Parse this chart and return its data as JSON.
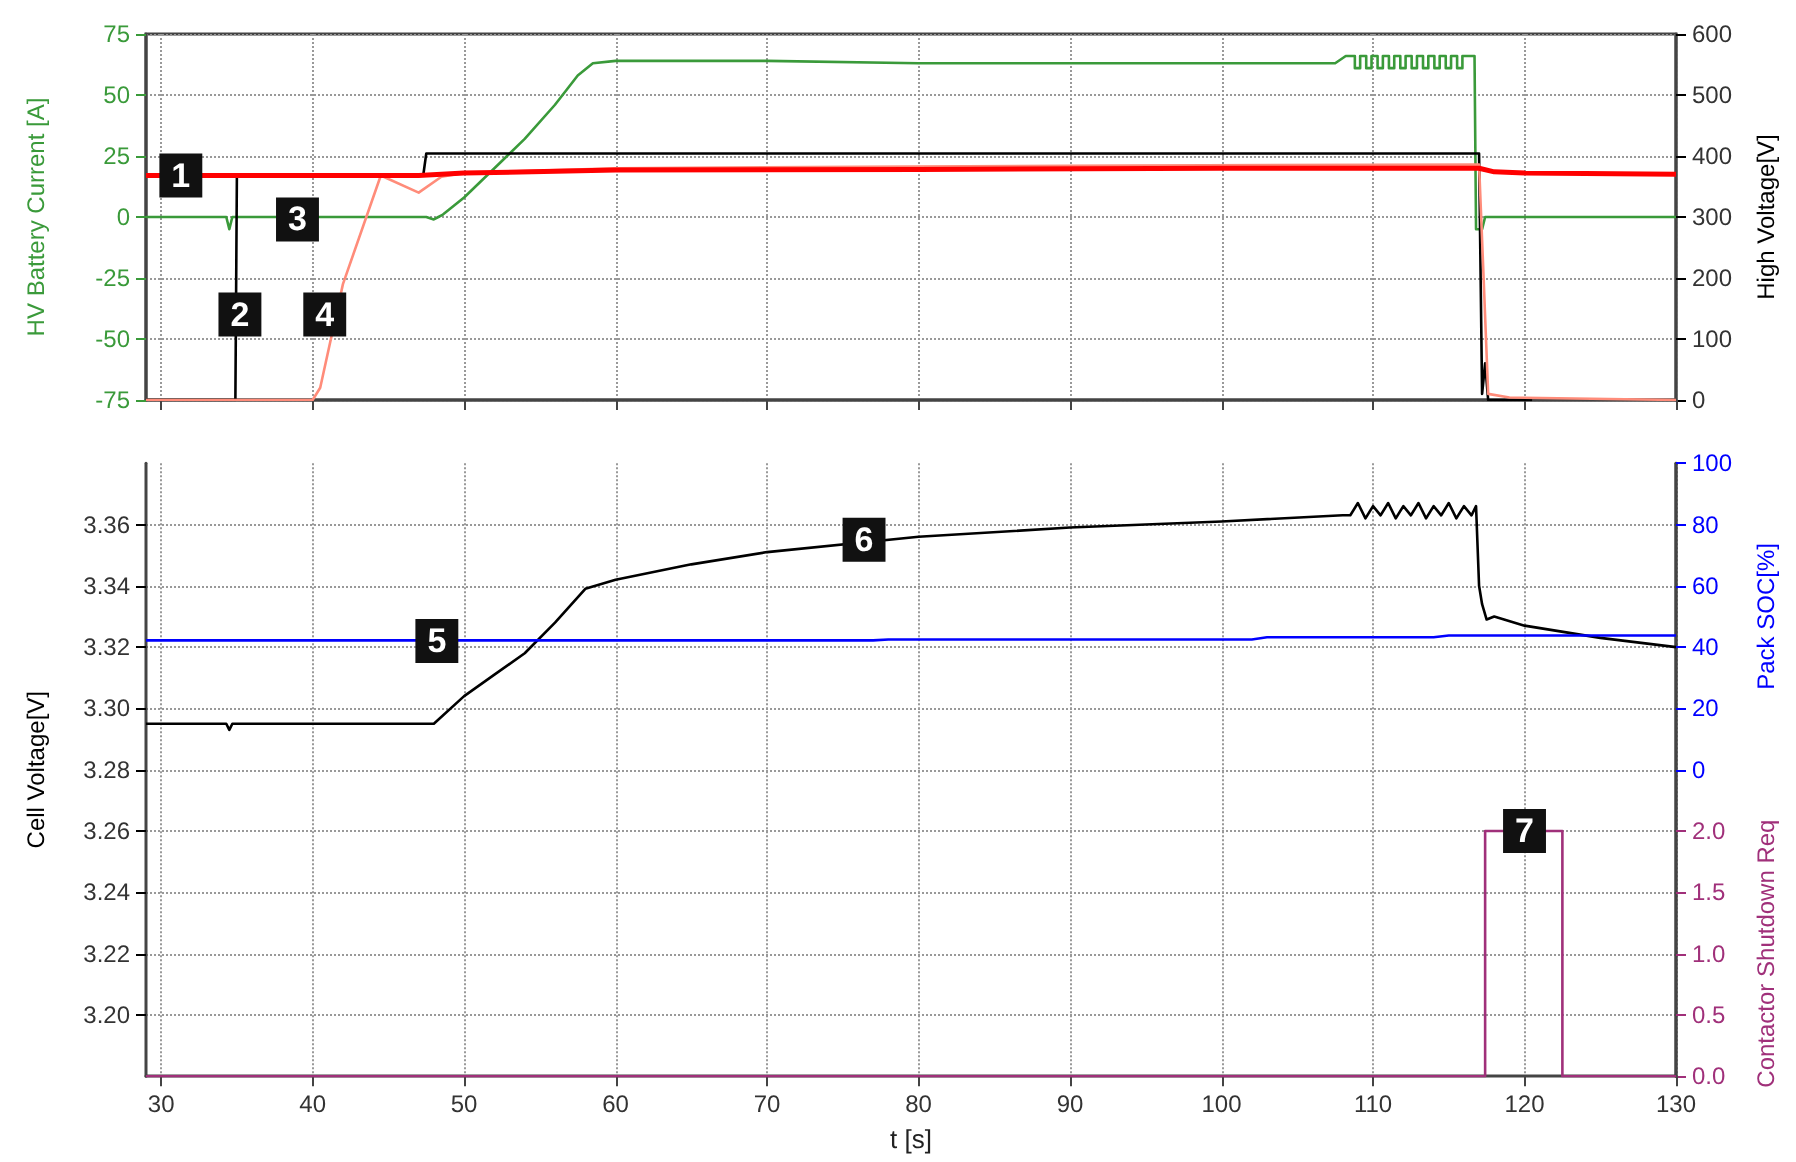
{
  "chart_data": [
    {
      "type": "line",
      "ylabel": "HV Battery Current [A]",
      "y2label": "High Voltage[V]",
      "xlim": [
        29,
        130
      ],
      "xticks": [
        30,
        40,
        50,
        60,
        70,
        80,
        90,
        100,
        110,
        120,
        130
      ],
      "ylim": [
        -75,
        75
      ],
      "yticks": [
        -75,
        -50,
        -25,
        0,
        25,
        50,
        75
      ],
      "y2lim": [
        0,
        600
      ],
      "y2ticks": [
        0,
        100,
        200,
        300,
        400,
        500,
        600
      ],
      "tick_labels": "y",
      "grid": true,
      "marker": "none",
      "line_style": "solid",
      "series": [
        {
          "color": "#3a9a3a",
          "x": [
            29,
            34.3,
            34.5,
            34.7,
            47.5,
            48,
            48.3,
            48.6,
            50,
            52,
            54,
            56,
            57.5,
            58.5,
            60,
            70,
            80,
            90,
            100,
            107.5,
            108.2,
            108.8,
            108.8,
            109.15,
            109.15,
            109.55,
            109.55,
            109.9,
            109.9,
            110.3,
            110.3,
            110.65,
            110.65,
            111.05,
            111.05,
            111.4,
            111.4,
            111.8,
            111.8,
            112.15,
            112.15,
            112.55,
            112.55,
            112.9,
            112.9,
            113.3,
            113.3,
            113.65,
            113.65,
            114.05,
            114.05,
            114.4,
            114.4,
            114.8,
            114.8,
            115.15,
            115.15,
            115.55,
            115.55,
            115.9,
            115.9,
            116.7,
            116.8,
            117.2,
            117.4,
            130
          ],
          "values": [
            0,
            0,
            -5,
            0,
            0,
            -1,
            0,
            1,
            8,
            20,
            32,
            46,
            58,
            63,
            64,
            64,
            63,
            63,
            63,
            63,
            66,
            66,
            61,
            61,
            66,
            66,
            61,
            61,
            66,
            66,
            61,
            61,
            66,
            66,
            61,
            61,
            66,
            66,
            61,
            61,
            66,
            66,
            61,
            61,
            66,
            66,
            61,
            61,
            66,
            66,
            61,
            61,
            66,
            66,
            61,
            61,
            66,
            66,
            61,
            61,
            66,
            66,
            -5,
            -5,
            0,
            0
          ]
        },
        {
          "color": "#000000",
          "axis": "y2",
          "x": [
            29,
            34.9,
            35,
            47.3,
            47.5,
            117,
            117.2,
            117.4,
            117.6,
            120.5
          ],
          "values": [
            0,
            0,
            368,
            368,
            404,
            404,
            10,
            60,
            0,
            0
          ]
        },
        {
          "color": "#ff8c7a",
          "axis": "y2",
          "x": [
            29,
            40,
            40.5,
            42,
            44.5,
            47,
            48.5,
            50,
            60,
            90,
            117,
            117.3,
            117.6,
            119,
            130
          ],
          "values": [
            0,
            0,
            20,
            190,
            368,
            340,
            366,
            372,
            380,
            384,
            386,
            200,
            10,
            4,
            0
          ]
        },
        {
          "color": "#ff0000",
          "axis": "y2",
          "x": [
            29,
            47,
            50,
            60,
            80,
            100,
            117,
            118,
            120,
            130
          ],
          "values": [
            368,
            368,
            372,
            377,
            378,
            380,
            380,
            374,
            372,
            370
          ]
        }
      ],
      "annotations": [
        {
          "text": "1",
          "x": 31.3,
          "y": 17
        },
        {
          "text": "2",
          "x": 35.2,
          "y": -40
        },
        {
          "text": "3",
          "x": 39,
          "y": -1
        },
        {
          "text": "4",
          "x": 40.8,
          "y": -40
        }
      ]
    },
    {
      "type": "line",
      "xlabel": "t [s]",
      "ylabel": "Cell Voltage[V]",
      "y2label": "Pack SOC[%]",
      "y3label": "Contactor Shutdown Req",
      "xlim": [
        29,
        130
      ],
      "xticks": [
        30,
        40,
        50,
        60,
        70,
        80,
        90,
        100,
        110,
        120,
        130
      ],
      "ylim": [
        3.18,
        3.38
      ],
      "yticks": [
        {
          "value": 3.2,
          "label": "3.20"
        },
        {
          "value": 3.22,
          "label": "3.22"
        },
        {
          "value": 3.24,
          "label": "3.24"
        },
        {
          "value": 3.26,
          "label": "3.26"
        },
        {
          "value": 3.28,
          "label": "3.28"
        },
        {
          "value": 3.3,
          "label": "3.30"
        },
        {
          "value": 3.32,
          "label": "3.32"
        },
        {
          "value": 3.34,
          "label": "3.34"
        },
        {
          "value": 3.36,
          "label": "3.36"
        }
      ],
      "y2lim": [
        -100,
        100
      ],
      "y2ticks": [
        0,
        20,
        40,
        60,
        80,
        100
      ],
      "y3lim": [
        0,
        5
      ],
      "y3ticks": [
        {
          "value": 0,
          "label": "0.0"
        },
        {
          "value": 0.5,
          "label": "0.5"
        },
        {
          "value": 1,
          "label": "1.0"
        },
        {
          "value": 1.5,
          "label": "1.5"
        },
        {
          "value": 2,
          "label": "2.0"
        }
      ],
      "grid": true,
      "marker": "none",
      "line_style": "solid",
      "series": [
        {
          "color": "#000000",
          "x": [
            29,
            34.3,
            34.5,
            34.7,
            48,
            50,
            52,
            54,
            56,
            58,
            60,
            65,
            70,
            80,
            90,
            100,
            108,
            108.5,
            109,
            109.5,
            110,
            110.5,
            111,
            111.5,
            112,
            112.5,
            113,
            113.5,
            114,
            114.5,
            115,
            115.5,
            116,
            116.5,
            116.8,
            117,
            117.2,
            117.5,
            118,
            120,
            125,
            130
          ],
          "values": [
            3.295,
            3.295,
            3.293,
            3.295,
            3.295,
            3.304,
            3.311,
            3.318,
            3.328,
            3.339,
            3.342,
            3.347,
            3.351,
            3.356,
            3.359,
            3.361,
            3.363,
            3.363,
            3.367,
            3.362,
            3.366,
            3.363,
            3.367,
            3.362,
            3.366,
            3.363,
            3.367,
            3.362,
            3.366,
            3.363,
            3.367,
            3.362,
            3.366,
            3.363,
            3.366,
            3.34,
            3.334,
            3.329,
            3.33,
            3.327,
            3.323,
            3.32
          ]
        },
        {
          "color": "#0000ff",
          "axis": "y2",
          "x": [
            29,
            77,
            78,
            102,
            103,
            114,
            115,
            130
          ],
          "values": [
            42.2,
            42.2,
            42.5,
            42.5,
            43.2,
            43.2,
            43.8,
            43.8
          ]
        },
        {
          "color": "#a0307a",
          "axis": "y3",
          "x": [
            29,
            117.4,
            117.4,
            122.5,
            122.5,
            130
          ],
          "values": [
            0,
            0,
            2,
            2,
            0,
            0
          ]
        }
      ],
      "annotations": [
        {
          "text": "5",
          "x": 48.2,
          "y": 3.322
        },
        {
          "text": "6",
          "x": 76.4,
          "y": 3.355
        },
        {
          "text": "7",
          "x": 120,
          "y": 3.26
        }
      ]
    }
  ]
}
